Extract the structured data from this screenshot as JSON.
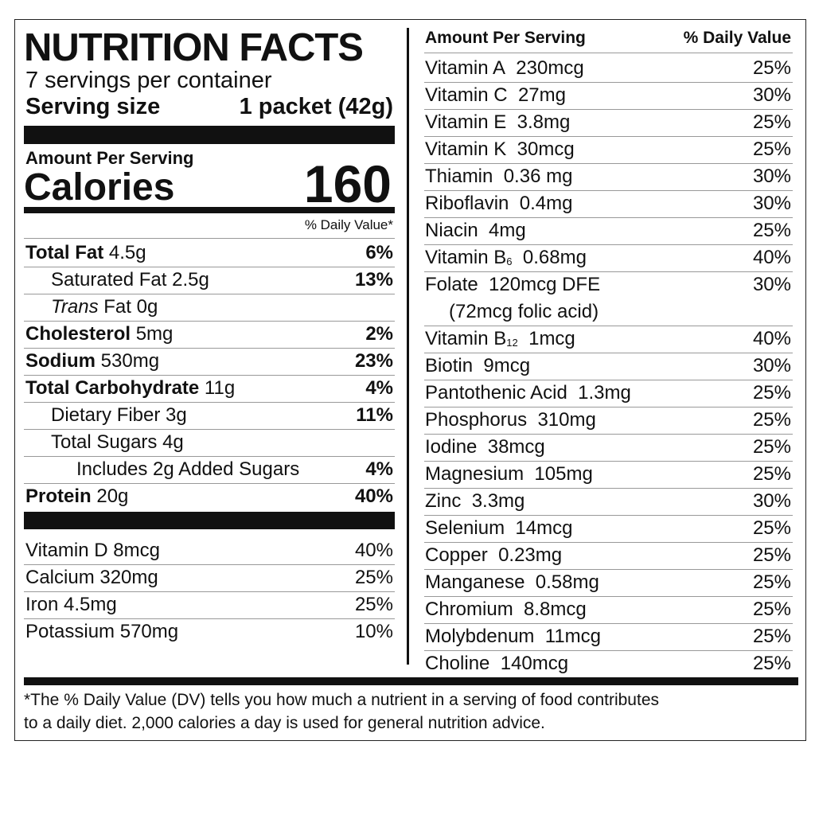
{
  "title": "NUTRITION FACTS",
  "servings": "7 servings per container",
  "serving_size": {
    "label": "Serving size",
    "value": "1 packet (42g)"
  },
  "amount_per_serving": "Amount Per Serving",
  "calories": {
    "label": "Calories",
    "value": "160"
  },
  "dv_header": "% Daily Value*",
  "nutrients": [
    {
      "name": "Total Fat",
      "amount": "4.5g",
      "dv": "6%"
    },
    {
      "name": "Saturated Fat",
      "amount": "2.5g",
      "dv": "13%"
    },
    {
      "prefix": "Trans",
      "name": "Fat",
      "amount": "0g"
    },
    {
      "name": "Cholesterol",
      "amount": "5mg",
      "dv": "2%"
    },
    {
      "name": "Sodium",
      "amount": "530mg",
      "dv": "23%"
    },
    {
      "name": "Total Carbohydrate",
      "amount": "11g",
      "dv": "4%"
    },
    {
      "name": "Dietary Fiber",
      "amount": "3g",
      "dv": "11%"
    },
    {
      "name": "Total Sugars",
      "amount": "4g"
    },
    {
      "name": "Includes 2g Added Sugars",
      "dv": "4%"
    },
    {
      "name": "Protein",
      "amount": "20g",
      "dv": "40%"
    }
  ],
  "vitamins": [
    {
      "name": "Vitamin D",
      "amount": "8mcg",
      "dv": "40%"
    },
    {
      "name": "Calcium",
      "amount": "320mg",
      "dv": "25%"
    },
    {
      "name": "Iron",
      "amount": "4.5mg",
      "dv": "25%"
    },
    {
      "name": "Potassium",
      "amount": "570mg",
      "dv": "10%"
    }
  ],
  "right_header": {
    "amount": "Amount Per Serving",
    "dv": "% Daily Value"
  },
  "micronutrients": [
    {
      "name": "Vitamin A",
      "amount": "230mcg",
      "dv": "25%"
    },
    {
      "name": "Vitamin C",
      "amount": "27mg",
      "dv": "30%"
    },
    {
      "name": "Vitamin E",
      "amount": "3.8mg",
      "dv": "25%"
    },
    {
      "name": "Vitamin K",
      "amount": "30mcg",
      "dv": "25%"
    },
    {
      "name": "Thiamin",
      "amount": "0.36 mg",
      "dv": "30%"
    },
    {
      "name": "Riboflavin",
      "amount": "0.4mg",
      "dv": "30%"
    },
    {
      "name": "Niacin",
      "amount": "4mg",
      "dv": "25%"
    },
    {
      "name": "Vitamin B",
      "sub": "6",
      "amount": "0.68mg",
      "dv": "40%"
    },
    {
      "name": "Folate",
      "amount": "120mcg DFE",
      "dv": "30%",
      "note": "(72mcg folic acid)"
    },
    {
      "name": "Vitamin B",
      "sub": "12",
      "amount": "1mcg",
      "dv": "40%"
    },
    {
      "name": "Biotin",
      "amount": "9mcg",
      "dv": "30%"
    },
    {
      "name": "Pantothenic Acid",
      "amount": "1.3mg",
      "dv": "25%"
    },
    {
      "name": "Phosphorus",
      "amount": "310mg",
      "dv": "25%"
    },
    {
      "name": "Iodine",
      "amount": "38mcg",
      "dv": "25%"
    },
    {
      "name": "Magnesium",
      "amount": "105mg",
      "dv": "25%"
    },
    {
      "name": "Zinc",
      "amount": "3.3mg",
      "dv": "30%"
    },
    {
      "name": "Selenium",
      "amount": "14mcg",
      "dv": "25%"
    },
    {
      "name": "Copper",
      "amount": "0.23mg",
      "dv": "25%"
    },
    {
      "name": "Manganese",
      "amount": "0.58mg",
      "dv": "25%"
    },
    {
      "name": "Chromium",
      "amount": "8.8mcg",
      "dv": "25%"
    },
    {
      "name": "Molybdenum",
      "amount": "11mcg",
      "dv": "25%"
    },
    {
      "name": "Choline",
      "amount": "140mcg",
      "dv": "25%"
    }
  ],
  "footnote": [
    "*The % Daily Value (DV) tells you how much a nutrient in a serving of food contributes",
    "to a daily diet. 2,000 calories a day is used for general nutrition advice."
  ]
}
